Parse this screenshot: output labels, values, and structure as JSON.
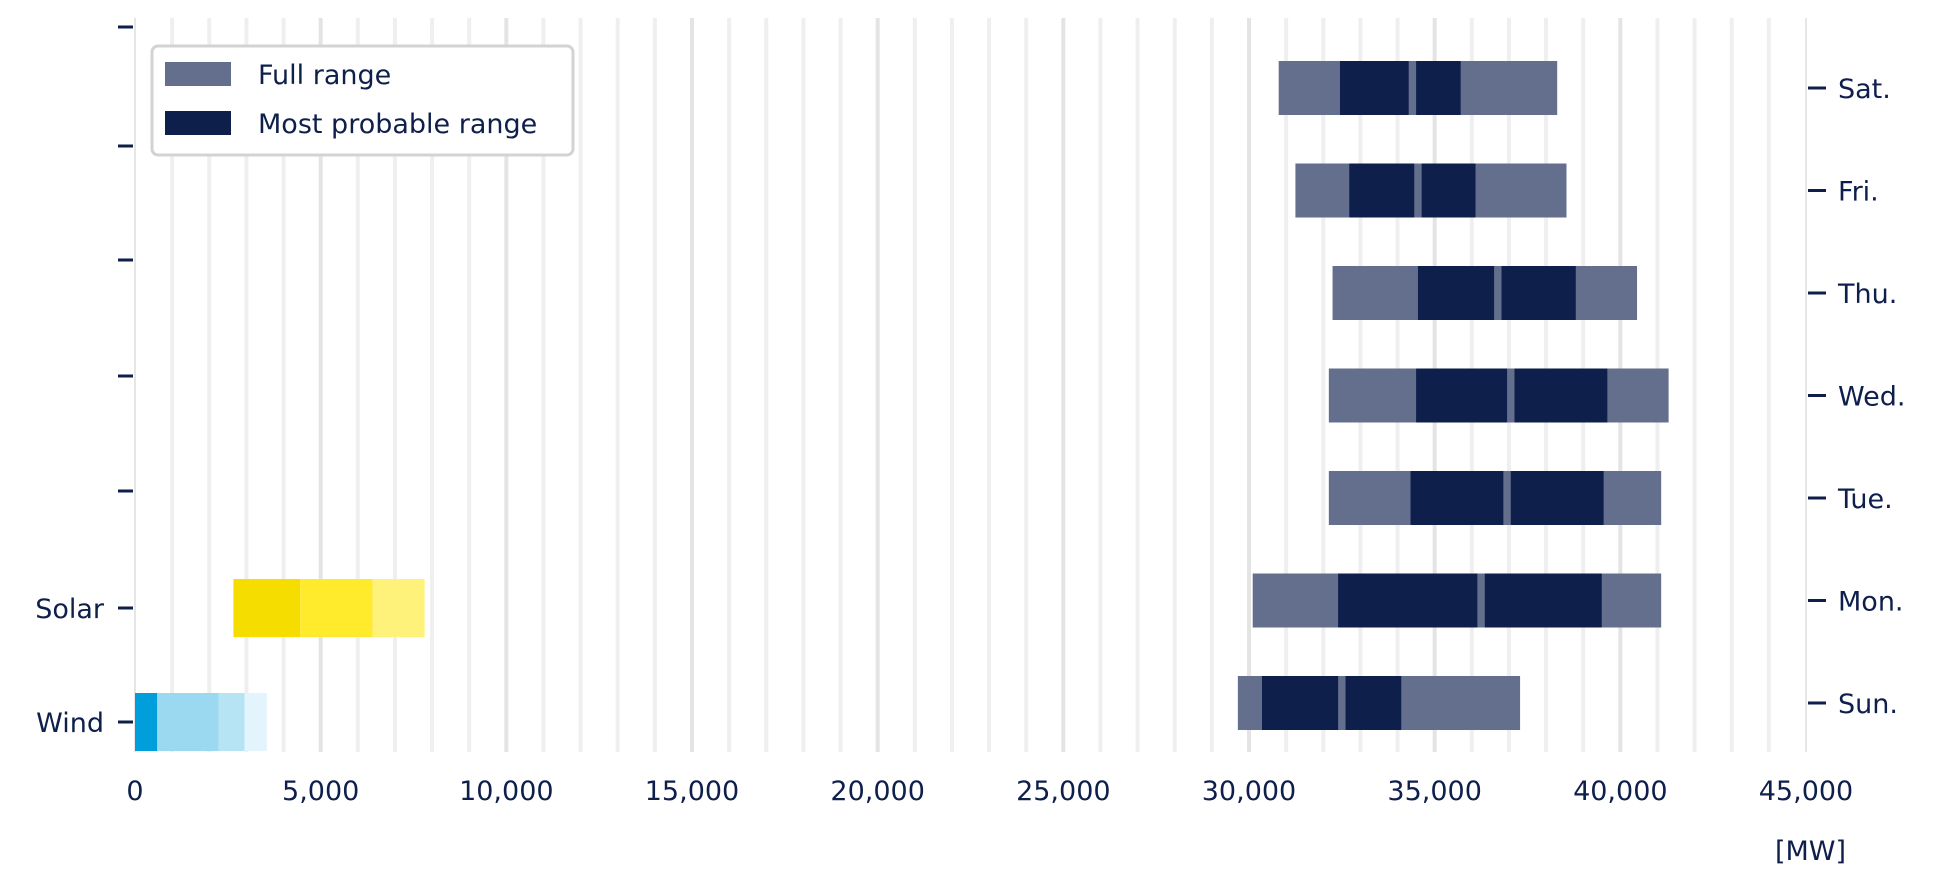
{
  "chart_data": {
    "type": "bar",
    "orientation": "horizontal",
    "unit": "[MW]",
    "xlim": [
      0,
      45000
    ],
    "x_ticks": [
      0,
      5000,
      10000,
      15000,
      20000,
      25000,
      30000,
      35000,
      40000,
      45000
    ],
    "x_tick_labels": [
      "0",
      "5,000",
      "10,000",
      "15,000",
      "20,000",
      "25,000",
      "30,000",
      "35,000",
      "40,000",
      "45,000"
    ],
    "grid": "vertical",
    "legend": {
      "placement": "top-left",
      "entries": [
        {
          "label": "Full range",
          "color": "#646f8d"
        },
        {
          "label": "Most probable range",
          "color": "#0f1f4b"
        }
      ]
    },
    "left_axis_labels": [
      "Solar",
      "Wind"
    ],
    "right_axis_labels": [
      "Sat.",
      "Fri.",
      "Thu.",
      "Wed.",
      "Tue.",
      "Mon.",
      "Sun."
    ],
    "days": [
      {
        "label": "Sat.",
        "full_range": [
          30800,
          38300
        ],
        "probable_ranges": [
          [
            32450,
            34300
          ],
          [
            34500,
            35700
          ]
        ]
      },
      {
        "label": "Fri.",
        "full_range": [
          31250,
          38550
        ],
        "probable_ranges": [
          [
            32700,
            34450
          ],
          [
            34650,
            36100
          ]
        ]
      },
      {
        "label": "Thu.",
        "full_range": [
          32250,
          40450
        ],
        "probable_ranges": [
          [
            34550,
            36600
          ],
          [
            36800,
            38800
          ]
        ]
      },
      {
        "label": "Wed.",
        "full_range": [
          32150,
          41300
        ],
        "probable_ranges": [
          [
            34500,
            36950
          ],
          [
            37150,
            39650
          ]
        ]
      },
      {
        "label": "Tue.",
        "full_range": [
          32150,
          41100
        ],
        "probable_ranges": [
          [
            34350,
            36850
          ],
          [
            37050,
            39550
          ]
        ]
      },
      {
        "label": "Mon.",
        "full_range": [
          30100,
          41100
        ],
        "probable_ranges": [
          [
            32400,
            36150
          ],
          [
            36350,
            39500
          ]
        ]
      },
      {
        "label": "Sun.",
        "full_range": [
          29700,
          37300
        ],
        "probable_ranges": [
          [
            30350,
            32400
          ],
          [
            32600,
            34100
          ]
        ]
      }
    ],
    "renewables": [
      {
        "label": "Solar",
        "segments": [
          {
            "range": [
              2650,
              4450
            ],
            "color": "#f5dd00"
          },
          {
            "range": [
              4450,
              6400
            ],
            "color": "#ffea2b"
          },
          {
            "range": [
              6400,
              7800
            ],
            "color": "#fff27a"
          }
        ]
      },
      {
        "label": "Wind",
        "segments": [
          {
            "range": [
              0,
              600
            ],
            "color": "#009fdb"
          },
          {
            "range": [
              600,
              2250
            ],
            "color": "#9bd9f0"
          },
          {
            "range": [
              2250,
              2950
            ],
            "color": "#b7e4f5"
          },
          {
            "range": [
              2950,
              3550
            ],
            "color": "#e3f4fc"
          }
        ]
      }
    ]
  }
}
